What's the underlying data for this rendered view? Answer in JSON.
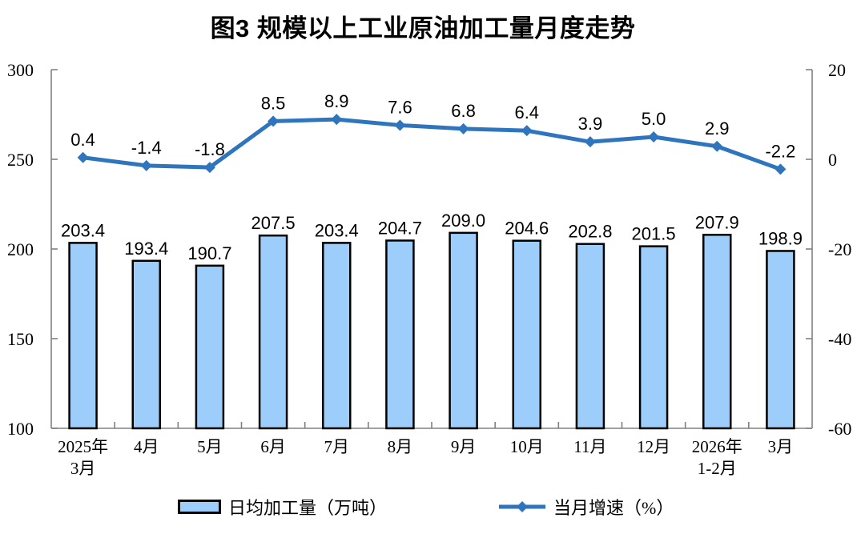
{
  "page": {
    "background": "#ffffff"
  },
  "chart_data": {
    "type": "combo",
    "title": "图3  规模以上工业原油加工量月度走势",
    "categories": [
      "2025年\n3月",
      "4月",
      "5月",
      "6月",
      "7月",
      "8月",
      "9月",
      "10月",
      "11月",
      "12月",
      "2026年\n1-2月",
      "3月"
    ],
    "series": [
      {
        "name": "日均加工量（万吨）",
        "type": "bar",
        "axis": "left",
        "values": [
          203.4,
          193.4,
          190.7,
          207.5,
          203.4,
          204.7,
          209.0,
          204.6,
          202.8,
          201.5,
          207.9,
          198.9
        ],
        "fill": "#9DCDFB",
        "stroke": "#000000"
      },
      {
        "name": "当月增速（%）",
        "type": "line",
        "axis": "right",
        "values": [
          0.4,
          -1.4,
          -1.8,
          8.5,
          8.9,
          7.6,
          6.8,
          6.4,
          3.9,
          5.0,
          2.9,
          -2.2
        ],
        "color": "#2E75BE",
        "marker": "diamond"
      }
    ],
    "left_axis": {
      "min": 100,
      "max": 300,
      "ticks": [
        300,
        250,
        200,
        150,
        100
      ]
    },
    "right_axis": {
      "min": -60,
      "max": 20,
      "ticks": [
        20,
        0,
        -20,
        -40,
        -60
      ]
    },
    "axis_color": "#808080",
    "text_color": "#000000",
    "grid": false,
    "legend_position": "bottom"
  }
}
